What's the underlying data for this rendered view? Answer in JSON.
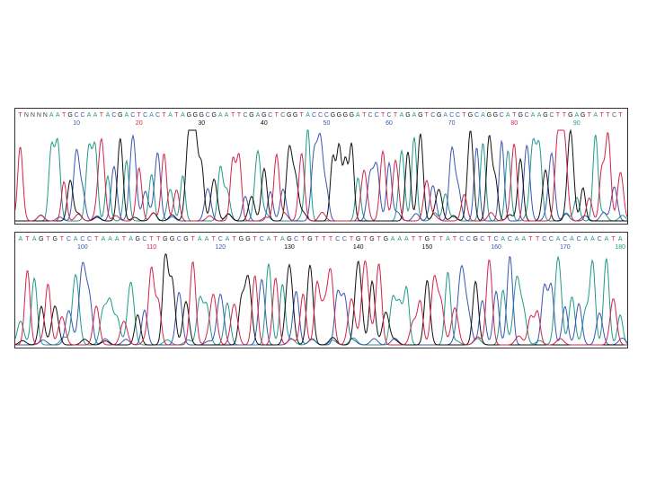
{
  "chart_data": [
    {
      "type": "line",
      "title": "",
      "xlabel": "",
      "ylabel": "",
      "sequence": "TNNNNAATGCCAATACGACTCACTATAGGGCGAATTCGAGCTCGGTACCCGGGGATCCTCTAGAGTCGACCTGCAGGCATGCAAGCTTGAGTATTCT",
      "position_labels": [
        "10",
        "20",
        "30",
        "40",
        "50",
        "60",
        "70",
        "80",
        "90"
      ],
      "series": [
        {
          "name": "A",
          "color": "#1f9a8a"
        },
        {
          "name": "C",
          "color": "#3a56b0"
        },
        {
          "name": "G",
          "color": "#111111"
        },
        {
          "name": "T",
          "color": "#d4234a"
        }
      ]
    },
    {
      "type": "line",
      "title": "",
      "xlabel": "",
      "ylabel": "",
      "sequence": "ATAGTGTCACCTAAATAGCTTGGCGTAATCATGGTCATAGCTGTTTCCTGTGTGAAATTGTTATCCGCTCACAATTCCACACAACATA",
      "position_labels": [
        "100",
        "110",
        "120",
        "130",
        "140",
        "150",
        "160",
        "170",
        "180"
      ],
      "series": [
        {
          "name": "A",
          "color": "#1f9a8a"
        },
        {
          "name": "C",
          "color": "#3a56b0"
        },
        {
          "name": "G",
          "color": "#111111"
        },
        {
          "name": "T",
          "color": "#d4234a"
        }
      ]
    }
  ]
}
